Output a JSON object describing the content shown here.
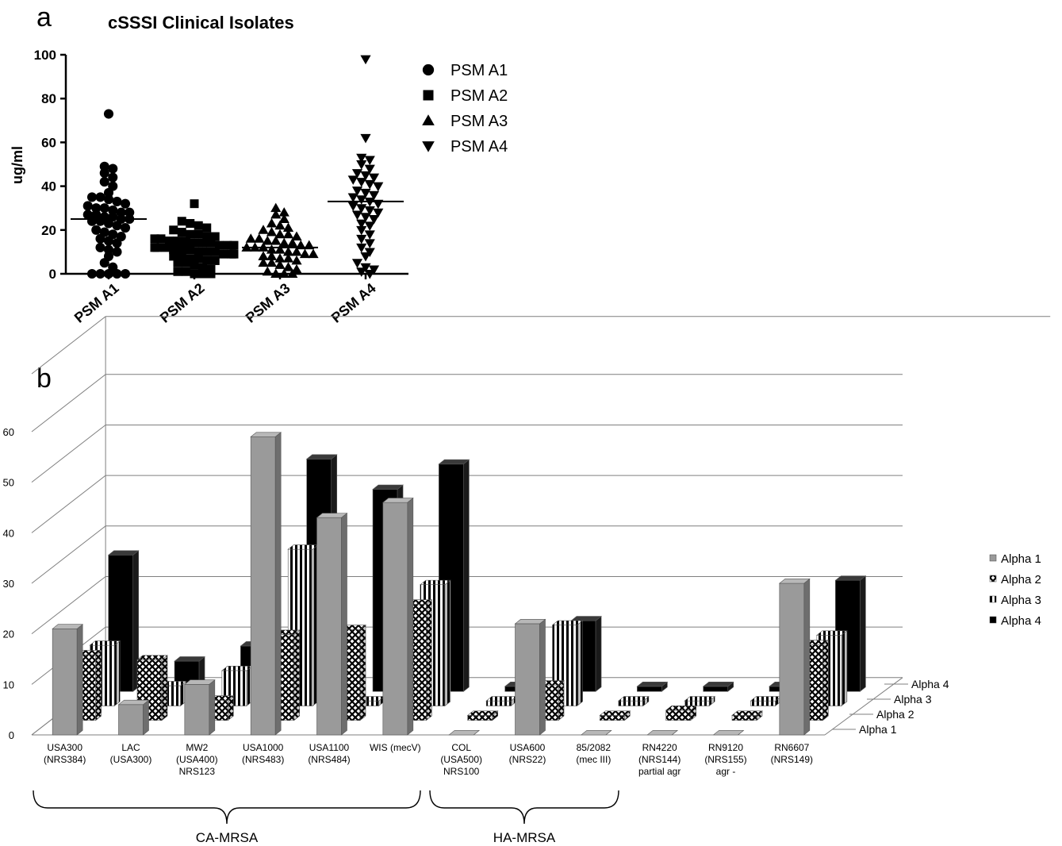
{
  "panels": {
    "a_label": "a",
    "b_label": "b"
  },
  "chart_data": [
    {
      "type": "scatter",
      "title": "cSSSI Clinical Isolates",
      "ylabel": "ug/ml",
      "xlabel": "",
      "ylim": [
        0,
        100
      ],
      "yticks": [
        0,
        20,
        40,
        60,
        80,
        100
      ],
      "categories": [
        "PSM A1",
        "PSM A2",
        "PSM A3",
        "PSM A4"
      ],
      "legend_placement": "right",
      "series": [
        {
          "name": "PSM A1",
          "marker": "circle",
          "mean": 25,
          "values": [
            73,
            49,
            48,
            46,
            44,
            42,
            40,
            37,
            35,
            35,
            34,
            33,
            32,
            31,
            30,
            30,
            29,
            28,
            28,
            27,
            27,
            26,
            26,
            25,
            25,
            24,
            24,
            23,
            22,
            21,
            20,
            19,
            18,
            17,
            16,
            15,
            14,
            12,
            11,
            10,
            8,
            5,
            3,
            0,
            0,
            0,
            0,
            0
          ]
        },
        {
          "name": "PSM A2",
          "marker": "square",
          "mean": 13,
          "values": [
            32,
            24,
            23,
            22,
            21,
            20,
            19,
            18,
            18,
            17,
            17,
            16,
            16,
            15,
            15,
            15,
            14,
            14,
            14,
            13,
            13,
            13,
            12,
            12,
            12,
            11,
            11,
            11,
            10,
            10,
            10,
            9,
            9,
            9,
            8,
            8,
            7,
            7,
            6,
            6,
            5,
            5,
            4,
            3,
            2,
            1,
            1,
            0,
            0,
            0
          ]
        },
        {
          "name": "PSM A3",
          "marker": "triangle-up",
          "mean": 12,
          "values": [
            30,
            28,
            27,
            25,
            23,
            22,
            21,
            20,
            19,
            18,
            18,
            17,
            16,
            16,
            15,
            15,
            14,
            14,
            13,
            13,
            12,
            12,
            12,
            11,
            11,
            10,
            10,
            9,
            9,
            8,
            8,
            7,
            7,
            6,
            5,
            5,
            4,
            3,
            2,
            1,
            0,
            0,
            0
          ]
        },
        {
          "name": "PSM A4",
          "marker": "triangle-down",
          "mean": 33,
          "values": [
            98,
            62,
            53,
            52,
            50,
            48,
            46,
            45,
            44,
            43,
            42,
            41,
            40,
            38,
            37,
            36,
            35,
            34,
            33,
            32,
            31,
            30,
            29,
            28,
            27,
            26,
            25,
            23,
            22,
            20,
            18,
            16,
            14,
            12,
            10,
            8,
            5,
            3,
            2,
            1,
            0
          ]
        }
      ]
    },
    {
      "type": "bar",
      "subtype": "3d-bar",
      "title": "",
      "xlabel": "",
      "ylabel": "",
      "ylim": [
        0,
        60
      ],
      "yticks": [
        "0",
        "10",
        "20",
        "30",
        "40",
        "50",
        "60"
      ],
      "ytick_labels_drawn": [
        "0",
        "10",
        "20",
        "30",
        "40",
        "50",
        "60"
      ],
      "legend_placement": "right",
      "categories": [
        [
          "USA300",
          "(NRS384)"
        ],
        [
          "LAC",
          "(USA300)"
        ],
        [
          "MW2",
          "(USA400)",
          "NRS123"
        ],
        [
          "USA1000",
          "(NRS483)"
        ],
        [
          "USA1100",
          "(NRS484)"
        ],
        [
          "WIS (mecV)"
        ],
        [
          "COL",
          "(USA500)",
          "NRS100"
        ],
        [
          "USA600",
          "(NRS22)"
        ],
        [
          "85/2082",
          "(mec III)"
        ],
        [
          "RN4220",
          "(NRS144)",
          "partial agr"
        ],
        [
          "RN9120",
          "(NRS155)",
          "agr -"
        ],
        [
          "RN6607",
          "(NRS149)"
        ]
      ],
      "depth_labels": [
        "Alpha 1",
        "Alpha 2",
        "Alpha 3",
        "Alpha 4"
      ],
      "groups": [
        {
          "label": "CA-MRSA",
          "from": 0,
          "to": 5
        },
        {
          "label": "HA-MRSA",
          "from": 6,
          "to": 8
        }
      ],
      "series": [
        {
          "name": "Alpha 1",
          "pattern": "gray",
          "values": [
            21,
            6,
            10,
            59,
            43,
            46,
            0,
            22,
            0,
            0,
            0,
            30
          ]
        },
        {
          "name": "Alpha 2",
          "pattern": "diagonal-cross",
          "values": [
            13,
            12,
            4,
            17,
            18,
            23,
            1,
            7,
            1,
            2,
            1,
            15
          ]
        },
        {
          "name": "Alpha 3",
          "pattern": "vertical-stripes",
          "values": [
            12,
            4,
            7,
            31,
            1,
            24,
            1,
            16,
            1,
            1,
            1,
            14
          ]
        },
        {
          "name": "Alpha 4",
          "pattern": "black",
          "values": [
            27,
            6,
            9,
            46,
            40,
            45,
            1,
            14,
            1,
            1,
            1,
            22
          ]
        }
      ]
    }
  ]
}
